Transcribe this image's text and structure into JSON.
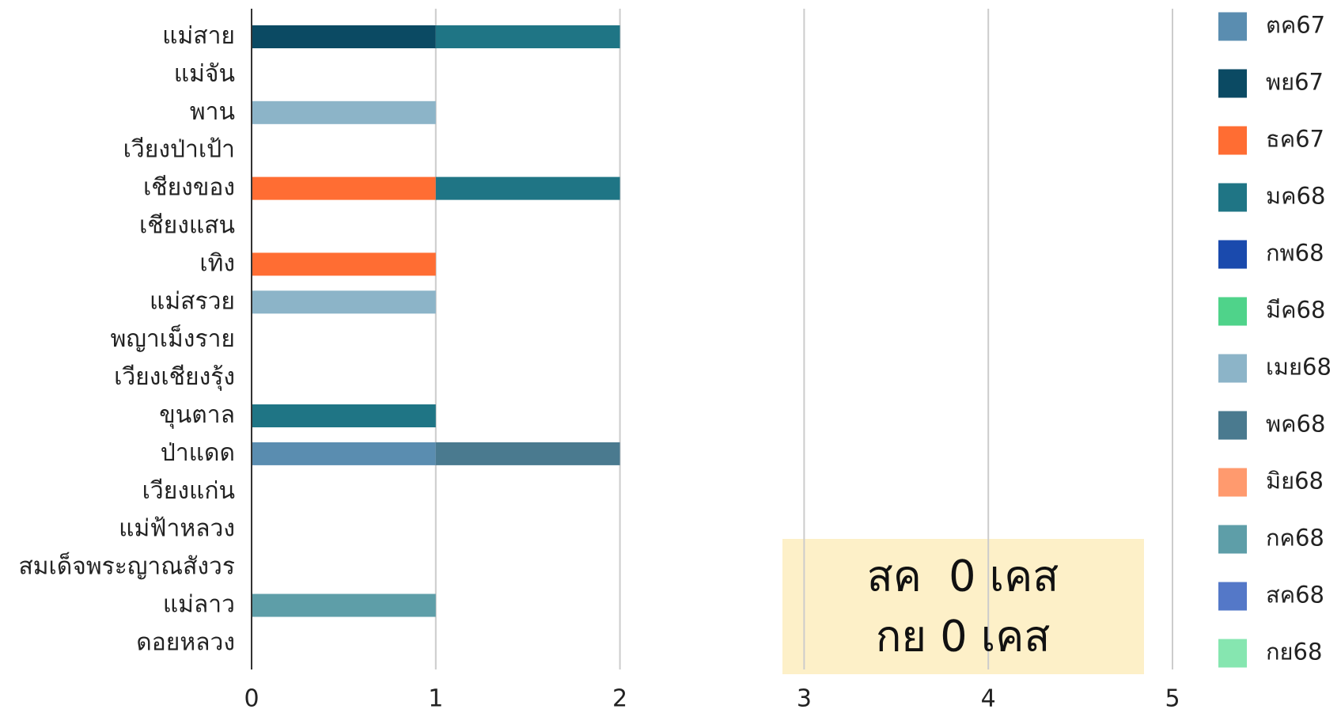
{
  "chart_data": {
    "type": "stacked-barh",
    "categories": [
      "แม่สาย",
      "แม่จัน",
      "พาน",
      "เวียงป่าเป้า",
      "เชียงของ",
      "เชียงแสน",
      "เทิง",
      "แม่สรวย",
      "พญาเม็งราย",
      "เวียงเชียงรุ้ง",
      "ขุนตาล",
      "ป่าแดด",
      "เวียงแก่น",
      "แม่ฟ้าหลวง",
      "สมเด็จพระญาณสังวร",
      "แม่ลาว",
      "ดอยหลวง"
    ],
    "series": [
      {
        "name": "ตค67",
        "color": "#5a8db0",
        "values": [
          0,
          0,
          0,
          0,
          0,
          0,
          0,
          0,
          0,
          0,
          0,
          1,
          0,
          0,
          0,
          0,
          0
        ]
      },
      {
        "name": "พย67",
        "color": "#0b4a63",
        "values": [
          1,
          0,
          0,
          0,
          0,
          0,
          0,
          0,
          0,
          0,
          0,
          0,
          0,
          0,
          0,
          0,
          0
        ]
      },
      {
        "name": "ธค67",
        "color": "#ff6d33",
        "values": [
          0,
          0,
          0,
          0,
          1,
          0,
          1,
          0,
          0,
          0,
          0,
          0,
          0,
          0,
          0,
          0,
          0
        ]
      },
      {
        "name": "มค68",
        "color": "#1f7585",
        "values": [
          1,
          0,
          0,
          0,
          1,
          0,
          0,
          0,
          0,
          0,
          1,
          0,
          0,
          0,
          0,
          0,
          0
        ]
      },
      {
        "name": "กพ68",
        "color": "#1a4aad",
        "values": [
          0,
          0,
          0,
          0,
          0,
          0,
          0,
          0,
          0,
          0,
          0,
          0,
          0,
          0,
          0,
          0,
          0
        ]
      },
      {
        "name": "มีค68",
        "color": "#4fd38a",
        "values": [
          0,
          0,
          0,
          0,
          0,
          0,
          0,
          0,
          0,
          0,
          0,
          0,
          0,
          0,
          0,
          0,
          0
        ]
      },
      {
        "name": "เมย68",
        "color": "#8cb4c8",
        "values": [
          0,
          0,
          1,
          0,
          0,
          0,
          0,
          1,
          0,
          0,
          0,
          0,
          0,
          0,
          0,
          0,
          0
        ]
      },
      {
        "name": "พค68",
        "color": "#4a7a8f",
        "values": [
          0,
          0,
          0,
          0,
          0,
          0,
          0,
          0,
          0,
          0,
          0,
          1,
          0,
          0,
          0,
          0,
          0
        ]
      },
      {
        "name": "มิย68",
        "color": "#ff9a6e",
        "values": [
          0,
          0,
          0,
          0,
          0,
          0,
          0,
          0,
          0,
          0,
          0,
          0,
          0,
          0,
          0,
          0,
          0
        ]
      },
      {
        "name": "กค68",
        "color": "#5e9ea8",
        "values": [
          0,
          0,
          0,
          0,
          0,
          0,
          0,
          0,
          0,
          0,
          0,
          0,
          0,
          0,
          0,
          1,
          0
        ]
      },
      {
        "name": "สค68",
        "color": "#5478c8",
        "values": [
          0,
          0,
          0,
          0,
          0,
          0,
          0,
          0,
          0,
          0,
          0,
          0,
          0,
          0,
          0,
          0,
          0
        ]
      },
      {
        "name": "กย68",
        "color": "#86e6b0",
        "values": [
          0,
          0,
          0,
          0,
          0,
          0,
          0,
          0,
          0,
          0,
          0,
          0,
          0,
          0,
          0,
          0,
          0
        ]
      }
    ],
    "xlim": [
      0,
      5
    ],
    "xticks": [
      0,
      1,
      2,
      3,
      4,
      5
    ],
    "grid": true,
    "legend": "right",
    "annotations": [
      "สค  0 เคส",
      "กย 0 เคส"
    ]
  }
}
